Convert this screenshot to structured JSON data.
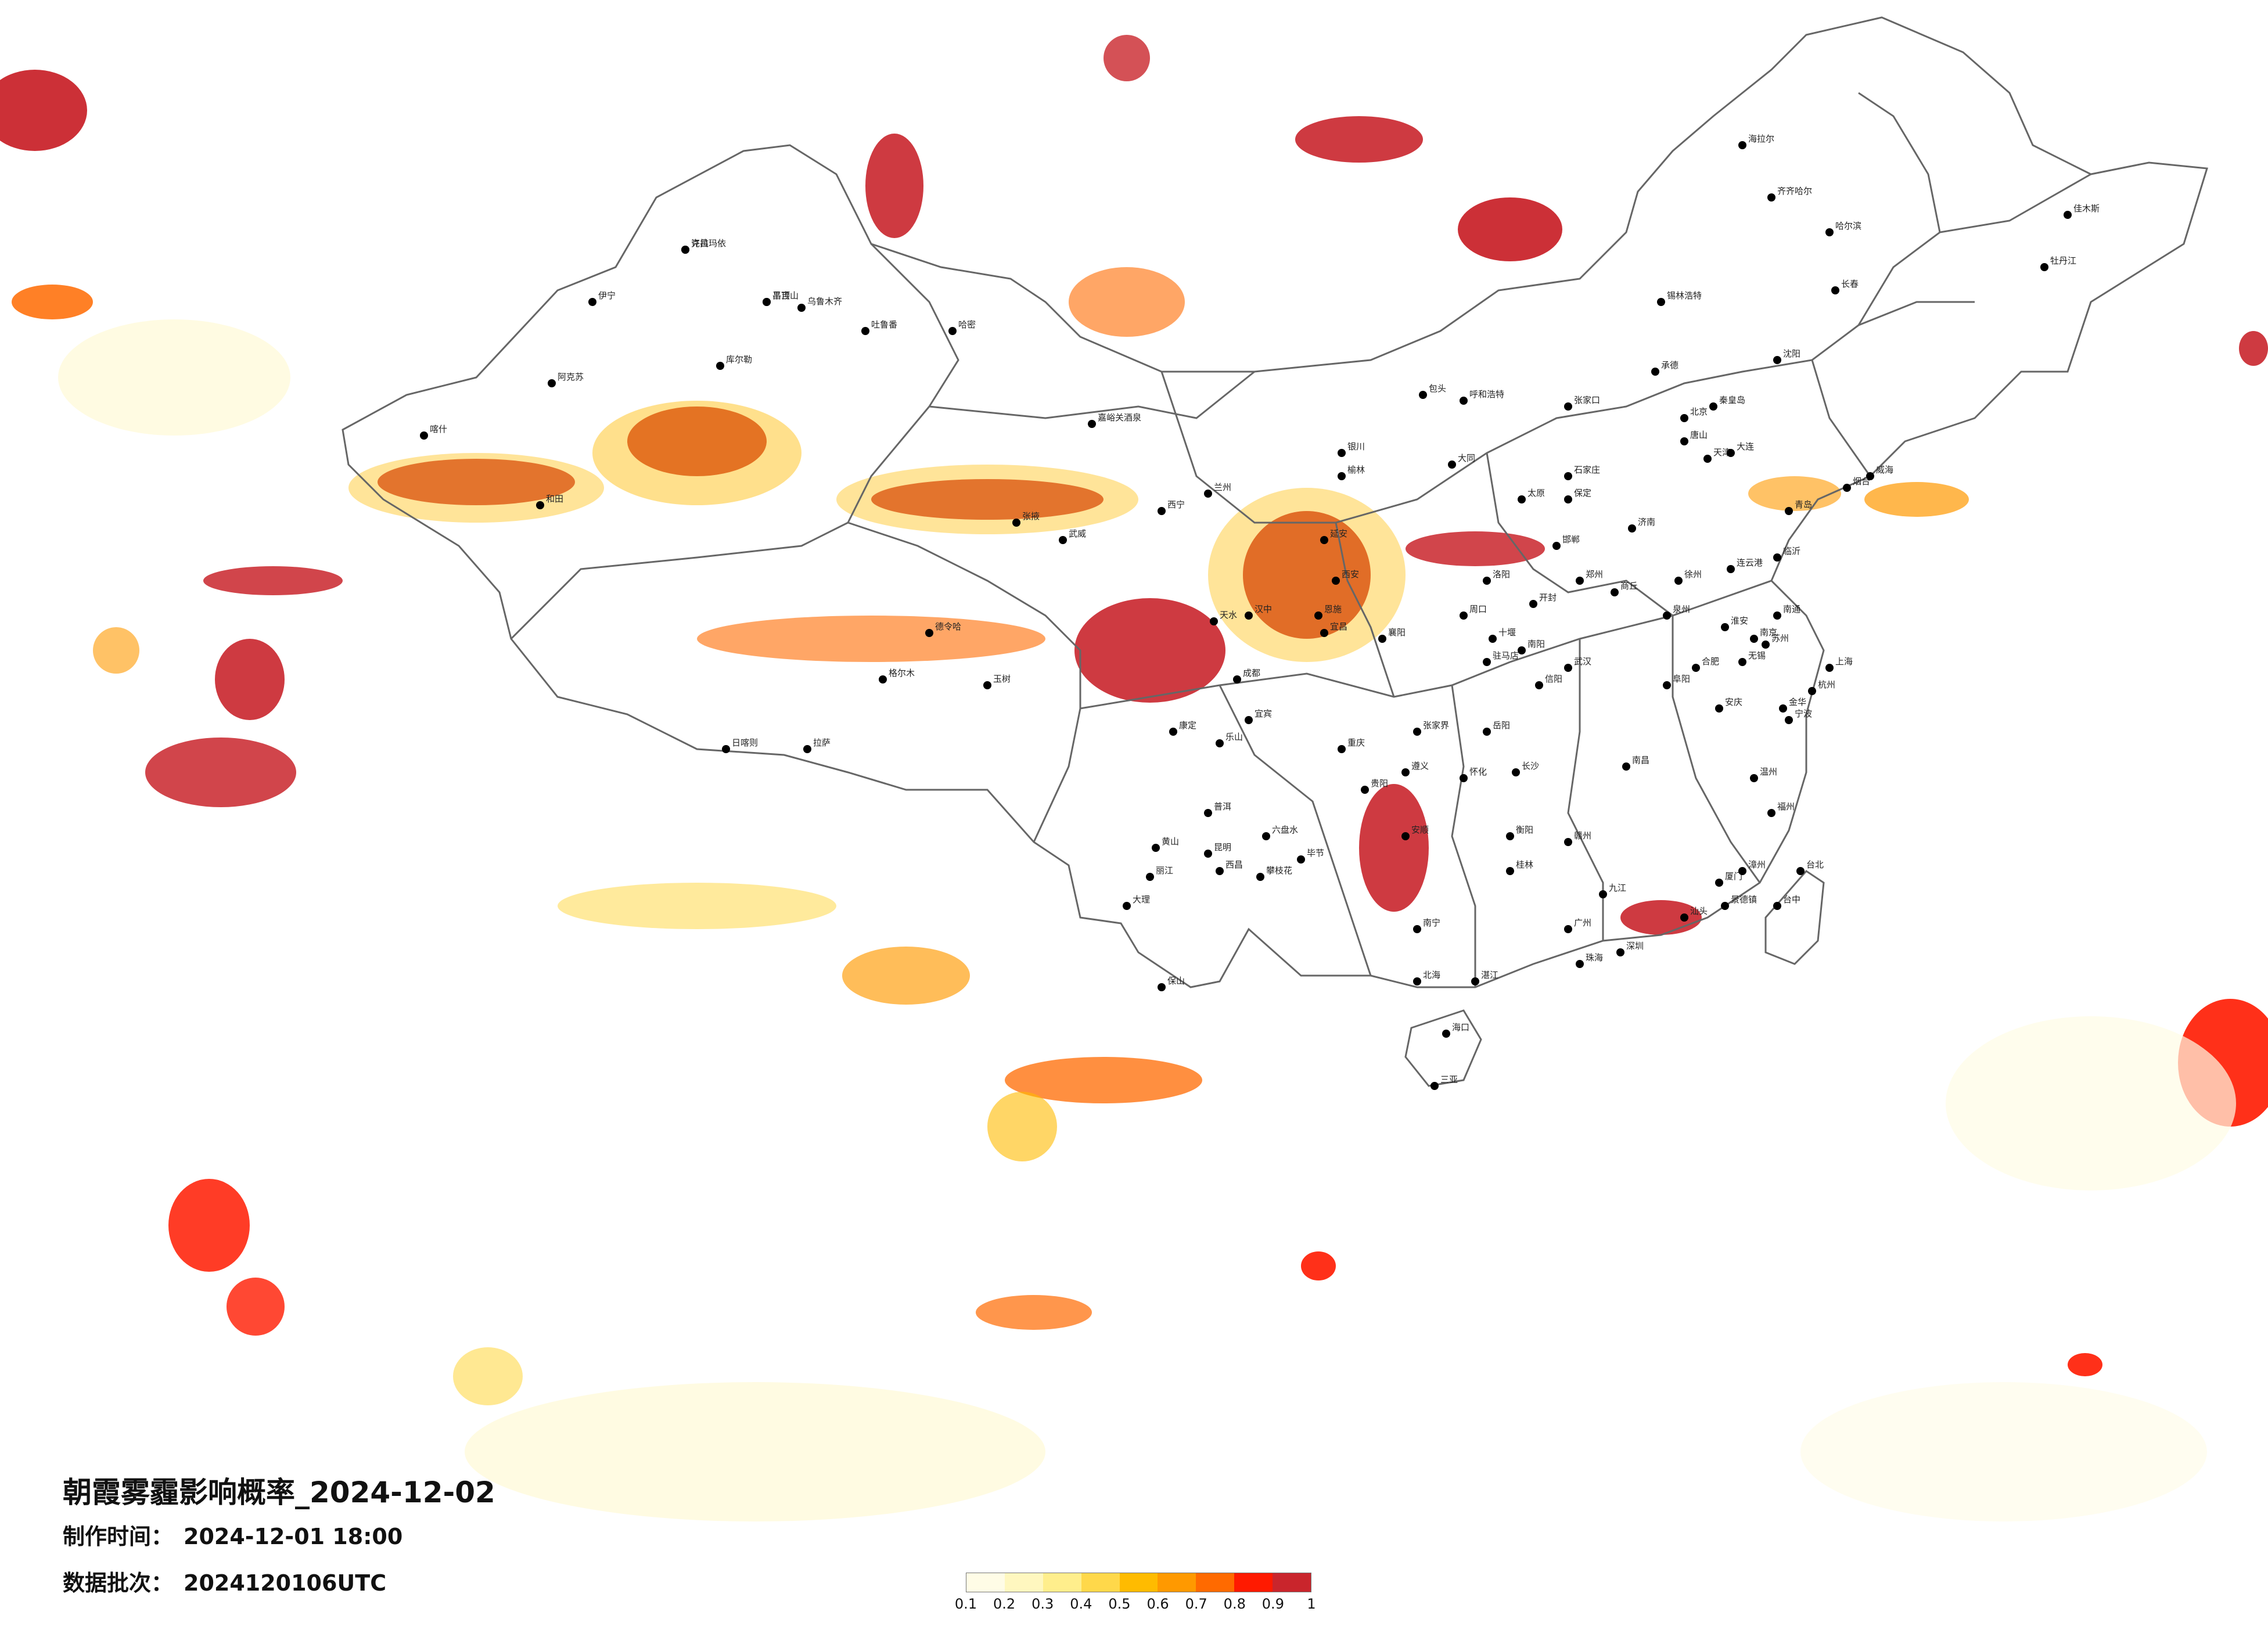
{
  "title": "朝霞雾霾影响概率_2024-12-02",
  "info": {
    "made_label": "制作时间：",
    "made_value": "2024-12-01 18:00",
    "batch_label": "数据批次：",
    "batch_value": "2024120106UTC"
  },
  "legend": {
    "colors": [
      "#fffce6",
      "#fff7bf",
      "#ffee8c",
      "#ffd84a",
      "#ffbb00",
      "#ff9900",
      "#ff6a00",
      "#ff1a00",
      "#c9252c"
    ],
    "labels": [
      "0.1",
      "0.2",
      "0.3",
      "0.4",
      "0.5",
      "0.6",
      "0.7",
      "0.8",
      "0.9",
      "1"
    ]
  },
  "cities": [
    "克拉玛依",
    "昌吉",
    "乌鲁木齐",
    "吐鲁番",
    "哈密",
    "库尔勒",
    "阿克苏",
    "伊宁",
    "喀什",
    "和田",
    "嘉峪关酒泉",
    "西宁",
    "兰州",
    "银川",
    "呼和浩特",
    "包头",
    "北京",
    "天津",
    "石家庄",
    "太原",
    "郑州",
    "西安",
    "济南",
    "南京",
    "合肥",
    "武汉",
    "长沙",
    "南昌",
    "杭州",
    "上海",
    "福州",
    "广州",
    "南宁",
    "贵阳",
    "昆明",
    "成都",
    "重庆",
    "拉萨",
    "日喀则",
    "格尔木",
    "哈尔滨",
    "长春",
    "沈阳",
    "大连",
    "齐齐哈尔",
    "海拉尔",
    "佳木斯",
    "牡丹江",
    "锡林浩特",
    "海口",
    "三亚",
    "台北",
    "台中",
    "厦门",
    "汕头",
    "深圳",
    "珠海",
    "北海",
    "湛江",
    "桂林",
    "遵义",
    "宜宾",
    "乐山",
    "康定",
    "玉树",
    "德令哈",
    "张掖",
    "武威",
    "天水",
    "汉中",
    "延安",
    "榆林",
    "大同",
    "张家口",
    "承德",
    "秦皇岛",
    "唐山",
    "保定",
    "邯郸",
    "洛阳",
    "开封",
    "商丘",
    "徐州",
    "连云港",
    "青岛",
    "烟台",
    "威海",
    "临沂",
    "淮安",
    "南通",
    "苏州",
    "无锡",
    "宁波",
    "温州",
    "金华",
    "宜昌",
    "襄阳",
    "岳阳",
    "衡阳",
    "赣州",
    "九江",
    "景德镇",
    "漳州",
    "泉州",
    "阜阳",
    "安庆",
    "黄山",
    "丽江",
    "大理",
    "保山",
    "普洱",
    "西昌",
    "攀枝花",
    "六盘水",
    "毕节",
    "安顺",
    "怀化",
    "张家界",
    "恩施",
    "十堰",
    "南阳",
    "信阳",
    "驻马店",
    "周口",
    "许昌",
    "平顶山"
  ]
}
